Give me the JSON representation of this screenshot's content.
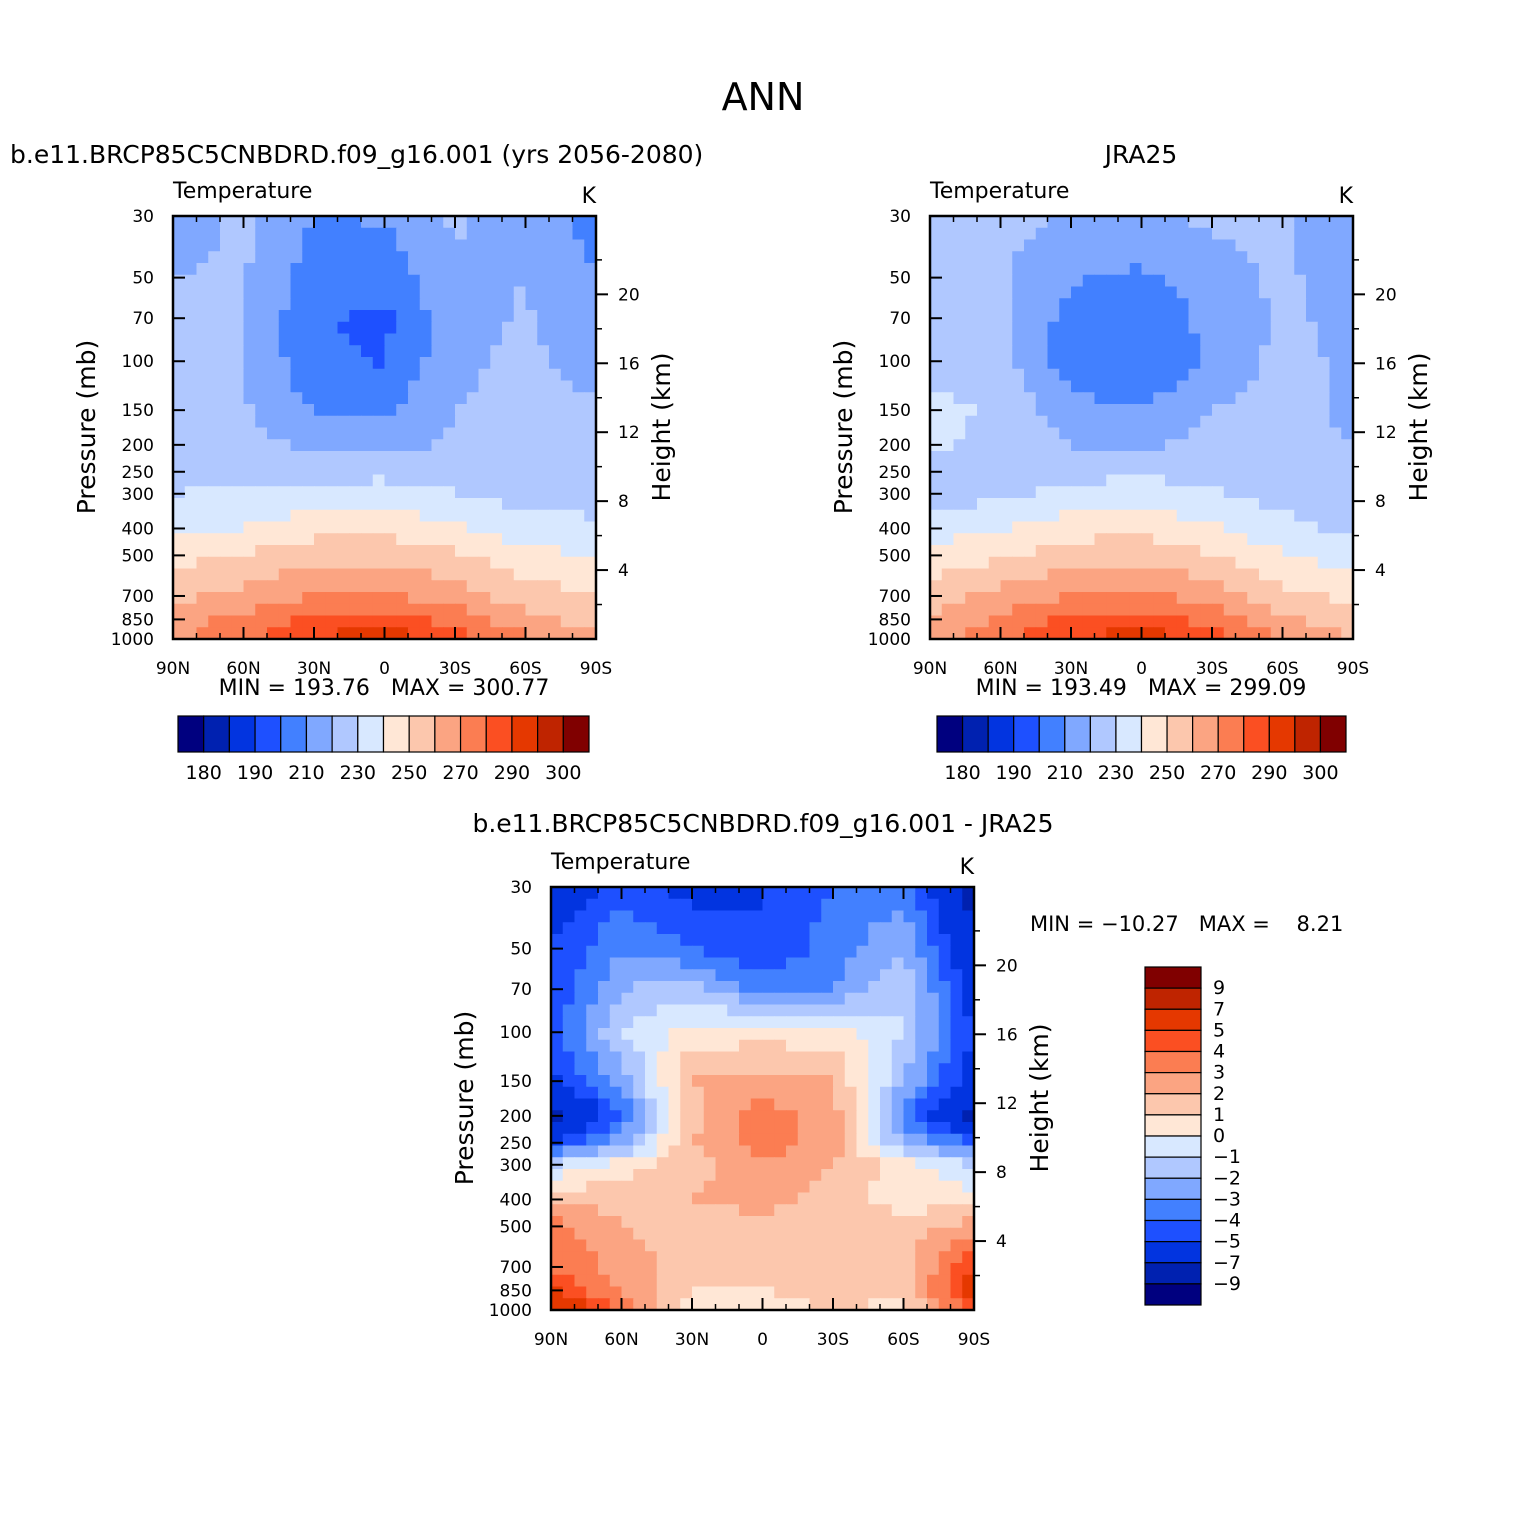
{
  "page_title": "ANN",
  "colors": {
    "temperature_scale": [
      "#00007f",
      "#0021b0",
      "#0234e0",
      "#1e50ff",
      "#4280ff",
      "#80a8ff",
      "#b0c8ff",
      "#d8e8ff",
      "#ffe7d6",
      "#fcc7ad",
      "#fba482",
      "#fb7d52",
      "#fb4f22",
      "#e53800",
      "#bf2400",
      "#800000"
    ],
    "difference_scale": [
      "#00007f",
      "#0021b0",
      "#0234e0",
      "#1e50ff",
      "#4280ff",
      "#80a8ff",
      "#b0c8ff",
      "#d8e8ff",
      "#ffe7d6",
      "#fcc7ad",
      "#fba482",
      "#fb7d52",
      "#fb4f22",
      "#e53800",
      "#bf2400",
      "#800000"
    ]
  },
  "chart_data": [
    {
      "type": "heatmap",
      "title": "b.e11.BRCP85C5CNBDRD.f09_g16.001 (yrs 2056-2080)",
      "subtitle_left": "Temperature",
      "subtitle_right": "K",
      "ylabel": "Pressure (mb)",
      "ylabel_right": "Height (km)",
      "x_ticks": [
        "90N",
        "60N",
        "30N",
        "0",
        "30S",
        "60S",
        "90S"
      ],
      "y_ticks": [
        "30",
        "50",
        "70",
        "100",
        "150",
        "200",
        "250",
        "300",
        "400",
        "500",
        "700",
        "850",
        "1000"
      ],
      "y_ticks_right": [
        "20",
        "16",
        "12",
        "8",
        "4"
      ],
      "stats": "MIN = 193.76   MAX = 300.77",
      "colorbar": {
        "orientation": "horizontal",
        "labels": [
          "180",
          "190",
          "210",
          "230",
          "250",
          "270",
          "290",
          "300"
        ]
      },
      "x": [
        -90,
        -60,
        -30,
        0,
        30,
        60,
        90
      ],
      "y": [
        30,
        50,
        70,
        100,
        150,
        200,
        300,
        400,
        500,
        700,
        850,
        1000
      ],
      "z": [
        [
          215,
          222,
          210,
          211,
          222,
          214,
          207
        ],
        [
          220,
          221,
          205,
          204,
          218,
          220,
          210
        ],
        [
          221,
          221,
          201,
          198,
          217,
          221,
          213
        ],
        [
          221,
          221,
          202,
          199,
          218,
          222,
          216
        ],
        [
          221,
          221,
          210,
          208,
          220,
          223,
          222
        ],
        [
          223,
          223,
          218,
          217,
          221,
          224,
          224
        ],
        [
          230,
          232,
          234,
          235,
          230,
          226,
          226
        ],
        [
          238,
          240,
          246,
          247,
          241,
          235,
          232
        ],
        [
          246,
          251,
          256,
          257,
          252,
          243,
          239
        ],
        [
          258,
          263,
          270,
          271,
          265,
          255,
          250
        ],
        [
          265,
          273,
          282,
          284,
          276,
          263,
          256
        ],
        [
          268,
          278,
          290,
          298,
          286,
          272,
          262
        ]
      ]
    },
    {
      "type": "heatmap",
      "title": "JRA25",
      "subtitle_left": "Temperature",
      "subtitle_right": "K",
      "ylabel": "Pressure (mb)",
      "ylabel_right": "Height (km)",
      "x_ticks": [
        "90N",
        "60N",
        "30N",
        "0",
        "30S",
        "60S",
        "90S"
      ],
      "y_ticks": [
        "30",
        "50",
        "70",
        "100",
        "150",
        "200",
        "250",
        "300",
        "400",
        "500",
        "700",
        "850",
        "1000"
      ],
      "y_ticks_right": [
        "20",
        "16",
        "12",
        "8",
        "4"
      ],
      "stats": "MIN = 193.49   MAX = 299.09",
      "colorbar": {
        "orientation": "horizontal",
        "labels": [
          "180",
          "190",
          "210",
          "230",
          "250",
          "270",
          "290",
          "300"
        ]
      },
      "x": [
        -90,
        -60,
        -30,
        0,
        30,
        60,
        90
      ],
      "y": [
        30,
        50,
        70,
        100,
        150,
        200,
        300,
        400,
        500,
        700,
        850,
        1000
      ],
      "z": [
        [
          221,
          222,
          220,
          219,
          222,
          222,
          211
        ],
        [
          222,
          222,
          211,
          208,
          215,
          222,
          214
        ],
        [
          222,
          222,
          206,
          203,
          213,
          222,
          217
        ],
        [
          225,
          223,
          205,
          201,
          212,
          223,
          218
        ],
        [
          233,
          229,
          213,
          210,
          220,
          223,
          218
        ],
        [
          232,
          226,
          220,
          219,
          222,
          222,
          220
        ],
        [
          224,
          228,
          233,
          235,
          231,
          226,
          222
        ],
        [
          235,
          239,
          246,
          247,
          241,
          233,
          228
        ],
        [
          243,
          249,
          255,
          257,
          251,
          241,
          235
        ],
        [
          255,
          263,
          270,
          272,
          265,
          253,
          247
        ],
        [
          262,
          272,
          282,
          285,
          276,
          262,
          254
        ],
        [
          265,
          277,
          289,
          296,
          286,
          271,
          260
        ]
      ]
    },
    {
      "type": "heatmap",
      "title": "b.e11.BRCP85C5CNBDRD.f09_g16.001 - JRA25",
      "subtitle_left": "Temperature",
      "subtitle_right": "K",
      "ylabel": "Pressure (mb)",
      "ylabel_right": "Height (km)",
      "x_ticks": [
        "90N",
        "60N",
        "30N",
        "0",
        "30S",
        "60S",
        "90S"
      ],
      "y_ticks": [
        "30",
        "50",
        "70",
        "100",
        "150",
        "200",
        "250",
        "300",
        "400",
        "500",
        "700",
        "850",
        "1000"
      ],
      "y_ticks_right": [
        "20",
        "16",
        "12",
        "8",
        "4"
      ],
      "stats": "MIN = −10.27   MAX =    8.21",
      "colorbar": {
        "orientation": "vertical",
        "labels": [
          "9",
          "7",
          "5",
          "4",
          "3",
          "2",
          "1",
          "0",
          "−1",
          "−2",
          "−3",
          "−4",
          "−5",
          "−7",
          "−9"
        ]
      },
      "x": [
        -90,
        -60,
        -30,
        0,
        30,
        60,
        90
      ],
      "y": [
        30,
        50,
        70,
        100,
        150,
        200,
        250,
        300,
        400,
        500,
        700,
        850,
        1000
      ],
      "z": [
        [
          -6.0,
          -4.5,
          -5.5,
          -5.0,
          -4.0,
          -3.5,
          -8.0
        ],
        [
          -5.0,
          -3.0,
          -4.0,
          -5.0,
          -3.5,
          -2.0,
          -6.5
        ],
        [
          -5.0,
          -2.0,
          -1.5,
          -3.5,
          -3.0,
          -1.0,
          -6.0
        ],
        [
          -4.5,
          -1.0,
          0.5,
          0.5,
          0.5,
          -1.0,
          -5.0
        ],
        [
          -5.5,
          -2.5,
          2.0,
          2.5,
          2.0,
          -2.0,
          -6.0
        ],
        [
          -8.0,
          -4.0,
          1.5,
          3.5,
          2.5,
          -3.5,
          -8.0
        ],
        [
          -5.0,
          -2.5,
          2.0,
          3.5,
          2.5,
          -2.0,
          -4.0
        ],
        [
          -1.0,
          0.5,
          1.5,
          3.0,
          2.0,
          0.5,
          -1.0
        ],
        [
          2.0,
          1.5,
          2.0,
          2.5,
          1.5,
          0.5,
          0.5
        ],
        [
          3.5,
          2.0,
          1.5,
          1.5,
          1.5,
          1.5,
          2.5
        ],
        [
          4.0,
          2.5,
          1.5,
          1.0,
          1.5,
          1.5,
          5.0
        ],
        [
          5.0,
          3.0,
          1.0,
          1.0,
          1.5,
          1.5,
          6.0
        ],
        [
          7.0,
          3.5,
          0.5,
          0.5,
          1.0,
          0.5,
          4.0
        ]
      ]
    }
  ]
}
